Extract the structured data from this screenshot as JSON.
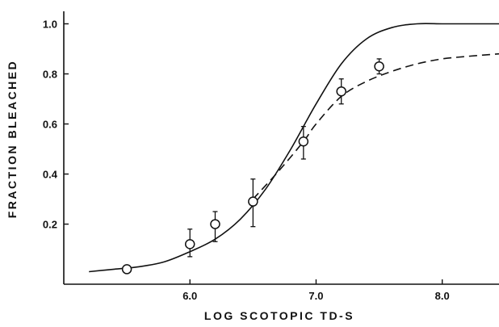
{
  "chart_data": {
    "type": "line",
    "title": "",
    "xlabel": "LOG SCOTOPIC TD-S",
    "ylabel": "FRACTION BLEACHED",
    "xlim": [
      5.0,
      8.45
    ],
    "ylim": [
      -0.04,
      1.05
    ],
    "x_ticks": [
      6.0,
      7.0,
      8.0
    ],
    "x_tick_labels": [
      "6.0",
      "7.0",
      "8.0"
    ],
    "y_ticks": [
      0.2,
      0.4,
      0.6,
      0.8,
      1.0
    ],
    "y_tick_labels": [
      "0.2",
      "0.4",
      "0.6",
      "0.8",
      "1.0"
    ],
    "grid": false,
    "legend": "none",
    "series": [
      {
        "style": "solid",
        "x": [
          5.2,
          5.4,
          5.6,
          5.8,
          6.0,
          6.2,
          6.4,
          6.6,
          6.8,
          7.0,
          7.2,
          7.4,
          7.6,
          7.8,
          8.0,
          8.2,
          8.45
        ],
        "y": [
          0.01,
          0.02,
          0.03,
          0.05,
          0.09,
          0.14,
          0.22,
          0.34,
          0.5,
          0.68,
          0.84,
          0.94,
          0.985,
          1.0,
          1.0,
          1.0,
          1.0
        ]
      },
      {
        "style": "dashed",
        "x": [
          6.5,
          6.7,
          6.9,
          7.0,
          7.2,
          7.4,
          7.6,
          7.8,
          8.0,
          8.2,
          8.45
        ],
        "y": [
          0.3,
          0.41,
          0.53,
          0.6,
          0.71,
          0.77,
          0.81,
          0.84,
          0.86,
          0.87,
          0.88
        ]
      },
      {
        "style": "points",
        "x": [
          5.5,
          6.0,
          6.2,
          6.5,
          6.9,
          7.2,
          7.5
        ],
        "y": [
          0.02,
          0.12,
          0.2,
          0.29,
          0.53,
          0.73,
          0.83
        ],
        "err_low": [
          0.02,
          0.07,
          0.13,
          0.19,
          0.46,
          0.68,
          0.8
        ],
        "err_high": [
          0.02,
          0.18,
          0.25,
          0.38,
          0.59,
          0.78,
          0.86
        ]
      }
    ]
  }
}
